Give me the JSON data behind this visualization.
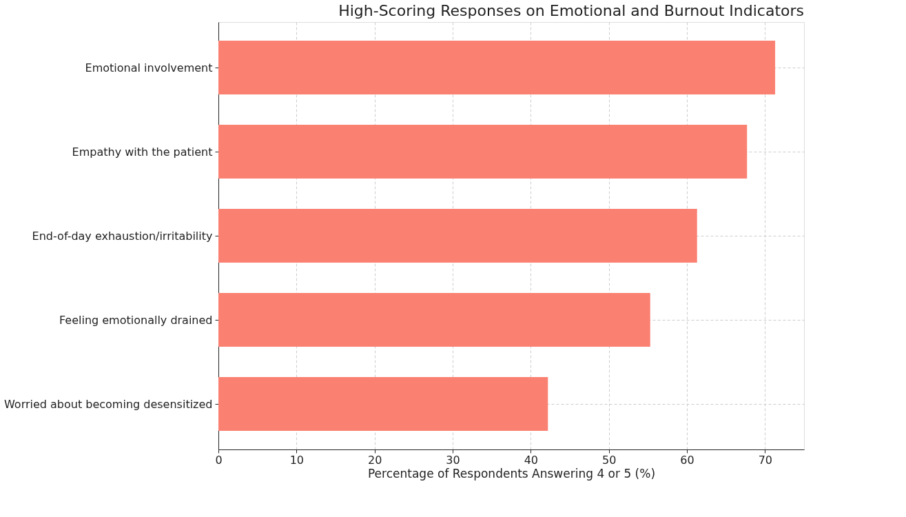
{
  "chart_data": {
    "type": "bar",
    "orientation": "horizontal",
    "title": "High-Scoring Responses on Emotional and Burnout Indicators",
    "xlabel": "Percentage of Respondents Answering 4 or 5 (%)",
    "categories": [
      "Emotional involvement",
      "Empathy with the patient",
      "End-of-day exhaustion/irritability",
      "Feeling emotionally drained",
      "Worried about becoming desensitized"
    ],
    "values": [
      71.3,
      67.7,
      61.3,
      55.3,
      42.2
    ],
    "color": "#fa8072",
    "xlim": [
      0,
      75
    ],
    "xticks": [
      0,
      10,
      20,
      30,
      40,
      50,
      60,
      70
    ],
    "grid": true
  }
}
